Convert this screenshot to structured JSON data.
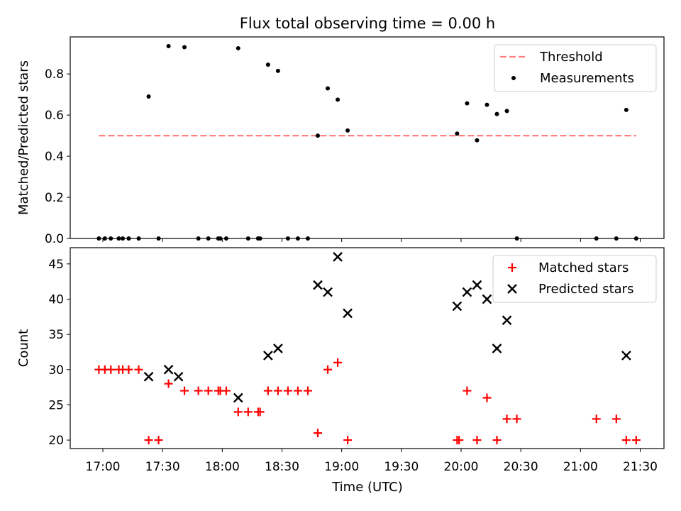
{
  "figure": {
    "title": "Flux total observing time = 0.00 h",
    "xlabel": "Time (UTC)",
    "xticks": [
      "17:00",
      "17:30",
      "18:00",
      "18:30",
      "19:00",
      "19:30",
      "20:00",
      "20:30",
      "21:00",
      "21:30"
    ]
  },
  "chart_data": [
    {
      "type": "scatter",
      "ylabel": "Matched/Predicted stars",
      "ylim": [
        0,
        0.98
      ],
      "yticks": [
        "0.0",
        "0.2",
        "0.4",
        "0.6",
        "0.8"
      ],
      "legend_position": "upper-right",
      "legend": [
        "Threshold",
        "Measurements"
      ],
      "threshold": {
        "name": "Threshold",
        "y": 0.5,
        "x_range": [
          "16:58",
          "21:28"
        ],
        "color": "#ff7f7f",
        "style": "dashed"
      },
      "series": [
        {
          "name": "Measurements",
          "marker": "dot",
          "color": "#000000",
          "x": [
            "16:58",
            "17:01",
            "17:04",
            "17:08",
            "17:10",
            "17:13",
            "17:18",
            "17:23",
            "17:28",
            "17:33",
            "17:41",
            "17:48",
            "17:53",
            "17:58",
            "17:59",
            "18:02",
            "18:08",
            "18:13",
            "18:18",
            "18:19",
            "18:23",
            "18:28",
            "18:33",
            "18:38",
            "18:43",
            "18:48",
            "18:53",
            "18:58",
            "19:03",
            "19:58",
            "20:03",
            "20:08",
            "20:13",
            "20:18",
            "20:23",
            "20:28",
            "21:08",
            "21:18",
            "21:23",
            "21:28"
          ],
          "y": [
            0,
            0,
            0,
            0,
            0,
            0,
            0,
            0.69,
            0,
            0.935,
            0.93,
            0,
            0,
            0,
            0,
            0,
            0.925,
            0,
            0,
            0,
            0.845,
            0.815,
            0,
            0,
            0,
            0.5,
            0.73,
            0.675,
            0.525,
            0.51,
            0.657,
            0.477,
            0.65,
            0.605,
            0.62,
            0,
            0,
            0,
            0.625,
            0
          ]
        }
      ]
    },
    {
      "type": "scatter",
      "ylabel": "Count",
      "ylim": [
        18.8,
        47.3
      ],
      "yticks": [
        "20",
        "25",
        "30",
        "35",
        "40",
        "45"
      ],
      "legend_position": "upper-right",
      "legend": [
        "Matched stars",
        "Predicted stars"
      ],
      "series": [
        {
          "name": "Matched stars",
          "marker": "plus",
          "color": "#ff0000",
          "x": [
            "16:58",
            "17:01",
            "17:04",
            "17:08",
            "17:10",
            "17:13",
            "17:18",
            "17:23",
            "17:28",
            "17:33",
            "17:41",
            "17:48",
            "17:53",
            "17:58",
            "17:59",
            "18:02",
            "18:08",
            "18:13",
            "18:18",
            "18:19",
            "18:23",
            "18:28",
            "18:33",
            "18:38",
            "18:43",
            "18:48",
            "18:53",
            "18:58",
            "19:03",
            "19:58",
            "19:59",
            "20:03",
            "20:08",
            "20:13",
            "20:18",
            "20:23",
            "20:28",
            "21:08",
            "21:18",
            "21:23",
            "21:28"
          ],
          "y": [
            30,
            30,
            30,
            30,
            30,
            30,
            30,
            20,
            20,
            28,
            27,
            27,
            27,
            27,
            27,
            27,
            24,
            24,
            24,
            24,
            27,
            27,
            27,
            27,
            27,
            21,
            30,
            31,
            20,
            20,
            20,
            27,
            20,
            26,
            20,
            23,
            23,
            23,
            23,
            20,
            20
          ]
        },
        {
          "name": "Predicted stars",
          "marker": "x",
          "color": "#000000",
          "x": [
            "17:23",
            "17:33",
            "17:38",
            "18:08",
            "18:23",
            "18:28",
            "18:48",
            "18:53",
            "18:58",
            "19:03",
            "19:58",
            "20:03",
            "20:08",
            "20:13",
            "20:18",
            "20:23",
            "21:23"
          ],
          "y": [
            29,
            30,
            29,
            26,
            32,
            33,
            42,
            41,
            46,
            38,
            39,
            41,
            42,
            40,
            33,
            37,
            32
          ]
        }
      ]
    }
  ]
}
